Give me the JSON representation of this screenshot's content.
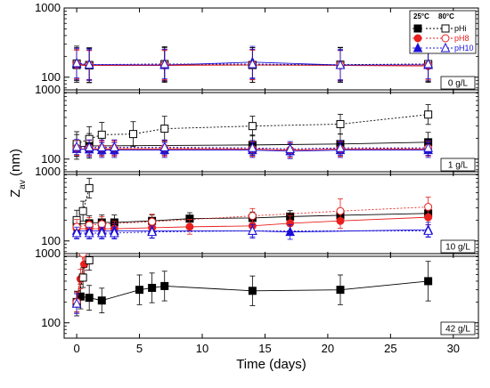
{
  "chart_data": {
    "type": "scatter",
    "xlabel": "Time (days)",
    "ylabel_main": "Z",
    "ylabel_sub": "av",
    "ylabel_unit": " (nm)",
    "xlim": [
      -1,
      32
    ],
    "x_ticks": [
      0,
      5,
      10,
      15,
      20,
      25,
      30
    ],
    "y_scale": "log",
    "ylim": [
      60,
      1000
    ],
    "y_tick_labels": [
      "100",
      "1000"
    ],
    "colors": {
      "pHi": "#000000",
      "pH8": "#e8201e",
      "pH10": "#1a10d8"
    },
    "legend": {
      "placement": "top-right of first panel",
      "col_25": "25°C",
      "col_80": "80°C",
      "entries": [
        {
          "key": "pHi",
          "label": "pHi",
          "marker": "square"
        },
        {
          "key": "pH8",
          "label": "pH8",
          "marker": "circle"
        },
        {
          "key": "pH10",
          "label": "pH10",
          "marker": "triangle"
        }
      ]
    },
    "panels": [
      {
        "label": "0 g/L",
        "series": [
          {
            "key": "pHi",
            "temp": "25",
            "x": [
              0,
              1,
              7,
              14,
              21,
              28
            ],
            "y": [
              150,
              148,
              150,
              150,
              150,
              150
            ],
            "err": [
              0.35,
              0.35,
              0.35,
              0.35,
              0.35,
              0.35
            ]
          },
          {
            "key": "pH8",
            "temp": "25",
            "x": [
              0,
              1,
              7,
              14,
              21,
              28
            ],
            "y": [
              150,
              148,
              148,
              150,
              148,
              145
            ],
            "err": [
              0.3,
              0.3,
              0.3,
              0.3,
              0.3,
              0.3
            ]
          },
          {
            "key": "pH10",
            "temp": "25",
            "x": [
              0,
              1,
              7,
              14,
              21,
              28
            ],
            "y": [
              155,
              152,
              150,
              165,
              150,
              150
            ],
            "err": [
              0.32,
              0.32,
              0.32,
              0.32,
              0.32,
              0.32
            ]
          },
          {
            "key": "pHi",
            "temp": "80",
            "x": [
              0,
              1,
              7,
              14,
              21,
              28
            ],
            "y": [
              158,
              150,
              155,
              150,
              152,
              155
            ],
            "err": [
              0.35,
              0.35,
              0.35,
              0.35,
              0.35,
              0.35
            ]
          },
          {
            "key": "pH8",
            "temp": "80",
            "x": [
              0,
              1,
              7,
              14,
              21,
              28
            ],
            "y": [
              155,
              150,
              152,
              152,
              150,
              150
            ],
            "err": [
              0.3,
              0.3,
              0.3,
              0.3,
              0.3,
              0.3
            ]
          },
          {
            "key": "pH10",
            "temp": "80",
            "x": [
              0,
              1,
              7,
              14,
              21,
              28
            ],
            "y": [
              160,
              152,
              155,
              155,
              150,
              155
            ],
            "err": [
              0.3,
              0.3,
              0.3,
              0.3,
              0.3,
              0.3
            ]
          }
        ]
      },
      {
        "label": "1 g/L",
        "series": [
          {
            "key": "pHi",
            "temp": "25",
            "x": [
              0,
              1,
              14,
              21,
              28
            ],
            "y": [
              150,
              155,
              160,
              165,
              175
            ],
            "err": [
              0.25,
              0.25,
              0.2,
              0.2,
              0.2
            ]
          },
          {
            "key": "pH8",
            "temp": "25",
            "x": [
              0,
              1,
              2,
              3,
              7,
              14,
              17,
              21,
              28
            ],
            "y": [
              140,
              140,
              140,
              140,
              140,
              140,
              135,
              140,
              140
            ],
            "err": [
              0.15,
              0.15,
              0.15,
              0.15,
              0.15,
              0.15,
              0.15,
              0.15,
              0.15
            ]
          },
          {
            "key": "pH10",
            "temp": "25",
            "x": [
              0,
              1,
              2,
              3,
              7,
              14,
              17,
              21,
              28
            ],
            "y": [
              140,
              138,
              135,
              135,
              135,
              135,
              130,
              135,
              135
            ],
            "err": [
              0.15,
              0.15,
              0.15,
              0.15,
              0.15,
              0.15,
              0.15,
              0.15,
              0.15
            ]
          },
          {
            "key": "pHi",
            "temp": "80",
            "x": [
              0,
              1,
              2,
              4.5,
              7,
              14,
              21,
              28
            ],
            "y": [
              165,
              195,
              225,
              230,
              275,
              300,
              320,
              440
            ],
            "err": [
              0.25,
              0.25,
              0.25,
              0.25,
              0.25,
              0.2,
              0.2,
              0.2
            ]
          },
          {
            "key": "pH8",
            "temp": "80",
            "x": [
              0,
              1,
              2,
              3,
              7,
              14,
              17,
              21,
              28
            ],
            "y": [
              145,
              145,
              145,
              145,
              145,
              140,
              135,
              140,
              145
            ],
            "err": [
              0.15,
              0.15,
              0.15,
              0.15,
              0.15,
              0.15,
              0.15,
              0.15,
              0.15
            ]
          },
          {
            "key": "pH10",
            "temp": "80",
            "x": [
              0,
              1,
              2,
              3,
              7,
              14,
              17,
              21,
              28
            ],
            "y": [
              150,
              148,
              148,
              148,
              148,
              145,
              140,
              145,
              145
            ],
            "err": [
              0.15,
              0.15,
              0.15,
              0.15,
              0.15,
              0.15,
              0.15,
              0.15,
              0.15
            ]
          }
        ]
      },
      {
        "label": "10 g/L",
        "series": [
          {
            "key": "pHi",
            "temp": "25",
            "x": [
              0,
              1,
              2,
              3,
              6,
              9,
              14,
              17,
              21,
              28
            ],
            "y": [
              175,
              180,
              185,
              185,
              195,
              210,
              215,
              225,
              235,
              250
            ],
            "err": [
              0.15,
              0.15,
              0.15,
              0.15,
              0.12,
              0.12,
              0.12,
              0.12,
              0.12,
              0.12
            ]
          },
          {
            "key": "pH8",
            "temp": "25",
            "x": [
              0,
              1,
              2,
              3,
              6,
              9,
              14,
              17,
              21,
              28
            ],
            "y": [
              150,
              150,
              150,
              150,
              155,
              160,
              165,
              180,
              195,
              220
            ],
            "err": [
              0.15,
              0.15,
              0.15,
              0.15,
              0.15,
              0.15,
              0.15,
              0.15,
              0.15,
              0.15
            ]
          },
          {
            "key": "pH10",
            "temp": "25",
            "x": [
              0,
              1,
              2,
              3,
              6,
              14,
              17,
              28
            ],
            "y": [
              140,
              140,
              140,
              140,
              140,
              140,
              135,
              145
            ],
            "err": [
              0.15,
              0.15,
              0.15,
              0.15,
              0.15,
              0.15,
              0.15,
              0.15
            ]
          },
          {
            "key": "pHi",
            "temp": "80",
            "x": [
              0,
              0.5,
              1
            ],
            "y": [
              200,
              270,
              580
            ],
            "err": [
              0.2,
              0.2,
              0.2
            ]
          },
          {
            "key": "pH8",
            "temp": "80",
            "x": [
              0,
              1,
              2,
              6,
              14,
              21,
              28
            ],
            "y": [
              160,
              170,
              175,
              190,
              230,
              270,
              310
            ],
            "err": [
              0.15,
              0.15,
              0.15,
              0.15,
              0.15,
              0.25,
              0.2
            ]
          },
          {
            "key": "pH10",
            "temp": "80",
            "x": [
              0,
              1,
              2,
              3,
              6,
              14,
              28
            ],
            "y": [
              130,
              130,
              130,
              130,
              135,
              140,
              140
            ],
            "err": [
              0.12,
              0.12,
              0.12,
              0.12,
              0.12,
              0.12,
              0.12
            ]
          }
        ]
      },
      {
        "label": "42 g/L",
        "series": [
          {
            "key": "pHi",
            "temp": "25",
            "x": [
              0,
              0.3,
              1,
              2,
              5,
              6,
              7,
              14,
              21,
              28
            ],
            "y": [
              190,
              240,
              230,
              210,
              300,
              320,
              340,
              290,
              300,
              400
            ],
            "err": [
              0.25,
              0.25,
              0.25,
              0.25,
              0.3,
              0.3,
              0.3,
              0.3,
              0.3,
              0.4
            ]
          },
          {
            "key": "pH8",
            "temp": "25",
            "x": [
              0,
              0.3,
              0.6
            ],
            "y": [
              190,
              430,
              700
            ],
            "err": [
              0.2,
              0.2,
              0.2
            ]
          },
          {
            "key": "pH10",
            "temp": "25",
            "x": [
              0
            ],
            "y": [
              190
            ],
            "err": [
              0.2
            ]
          },
          {
            "key": "pHi",
            "temp": "80",
            "x": [
              0,
              0.5,
              1
            ],
            "y": [
              200,
              450,
              800
            ],
            "err": [
              0.2,
              0.2,
              0.2
            ]
          },
          {
            "key": "pH8",
            "temp": "80",
            "x": [
              0,
              0.5
            ],
            "y": [
              200,
              1000
            ],
            "err": [
              0.2,
              0.2
            ]
          },
          {
            "key": "pH10",
            "temp": "80",
            "x": [
              0
            ],
            "y": [
              190
            ],
            "err": [
              0.2
            ]
          }
        ]
      }
    ]
  }
}
